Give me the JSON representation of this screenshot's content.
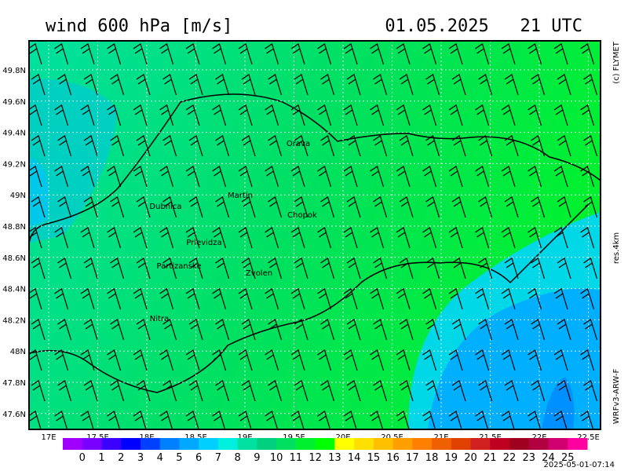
{
  "header": {
    "title": "wind 600 hPa [m/s]",
    "datetime": "01.05.2025   21 UTC"
  },
  "side": {
    "copyright": "(c) FLYMET",
    "resolution": "res.4km",
    "model": "WRFv3-ARW-F"
  },
  "map": {
    "lon_ticks": [
      "17E",
      "17.5E",
      "18E",
      "18.5E",
      "19E",
      "19.5E",
      "20E",
      "20.5E",
      "21E",
      "21.5E",
      "22E",
      "22.5E"
    ],
    "lat_ticks": [
      "49.8N",
      "49.6N",
      "49.4N",
      "49.2N",
      "49N",
      "48.8N",
      "48.6N",
      "48.4N",
      "48.2N",
      "48N",
      "47.8N",
      "47.6N"
    ],
    "places": [
      "Orava",
      "Martin",
      "Dubnica",
      "Chopok",
      "Prievidza",
      "Partizanske",
      "Zvolen",
      "Nitra"
    ]
  },
  "colorbar": {
    "labels": [
      "0",
      "1",
      "2",
      "3",
      "4",
      "5",
      "6",
      "7",
      "8",
      "9",
      "10",
      "11",
      "12",
      "13",
      "14",
      "15",
      "16",
      "17",
      "18",
      "19",
      "20",
      "21",
      "22",
      "23",
      "24",
      "25"
    ],
    "colors": [
      "#a000ff",
      "#7a00ff",
      "#3c00ff",
      "#0000ff",
      "#0040ff",
      "#0080ff",
      "#00a8ff",
      "#00d0ff",
      "#00f0e0",
      "#00e0a0",
      "#00d080",
      "#00e060",
      "#00f030",
      "#00ff00",
      "#ffff00",
      "#ffe000",
      "#ffc000",
      "#ffa000",
      "#ff8000",
      "#f06000",
      "#e04000",
      "#d02020",
      "#c00020",
      "#a00020",
      "#b00040",
      "#d00070",
      "#ff00a0"
    ]
  },
  "footer": {
    "timestamp": "2025-05-01-07:14"
  }
}
